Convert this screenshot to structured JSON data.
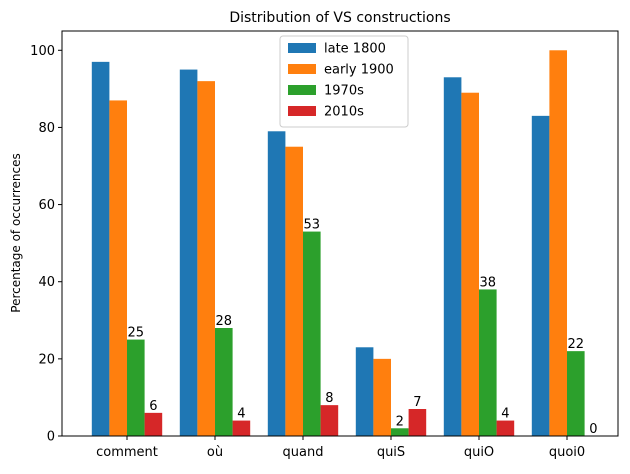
{
  "chart_data": {
    "type": "bar",
    "title": "Distribution of VS constructions",
    "xlabel": "",
    "ylabel": "Percentage of occurrences",
    "ylim": [
      0,
      105
    ],
    "yticks": [
      0,
      20,
      40,
      60,
      80,
      100
    ],
    "grid": false,
    "legend_position": "top-center",
    "categories": [
      "comment",
      "où",
      "quand",
      "quiS",
      "quiO",
      "quoi0"
    ],
    "series": [
      {
        "name": "late 1800",
        "color": "#1f77b4",
        "values": [
          97,
          95,
          79,
          23,
          93,
          83
        ],
        "show_labels": false
      },
      {
        "name": "early 1900",
        "color": "#ff7f0e",
        "values": [
          87,
          92,
          75,
          20,
          89,
          100
        ],
        "show_labels": false
      },
      {
        "name": "1970s",
        "color": "#2ca02c",
        "values": [
          25,
          28,
          53,
          2,
          38,
          22
        ],
        "show_labels": true
      },
      {
        "name": "2010s",
        "color": "#d62728",
        "values": [
          6,
          4,
          8,
          7,
          4,
          0
        ],
        "show_labels": true
      }
    ]
  }
}
